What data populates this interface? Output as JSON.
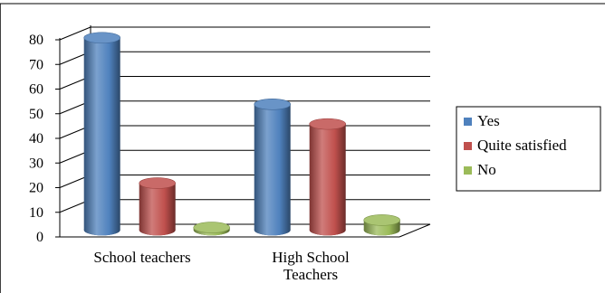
{
  "chart_data": {
    "type": "bar",
    "style": "3d-cylinder",
    "categories": [
      "School teachers",
      "High School\nTeachers"
    ],
    "series": [
      {
        "name": "Yes",
        "values": [
          78,
          51
        ],
        "color": "#4F81BD"
      },
      {
        "name": "Quite satisfied",
        "values": [
          19,
          43
        ],
        "color": "#C0504D"
      },
      {
        "name": "No",
        "values": [
          1,
          4
        ],
        "color": "#9BBB59"
      }
    ],
    "ylim": [
      0,
      80
    ],
    "yticks": [
      0,
      10,
      20,
      30,
      40,
      50,
      60,
      70,
      80
    ],
    "grid": true,
    "legend_position": "right",
    "title": "",
    "xlabel": "",
    "ylabel": ""
  }
}
